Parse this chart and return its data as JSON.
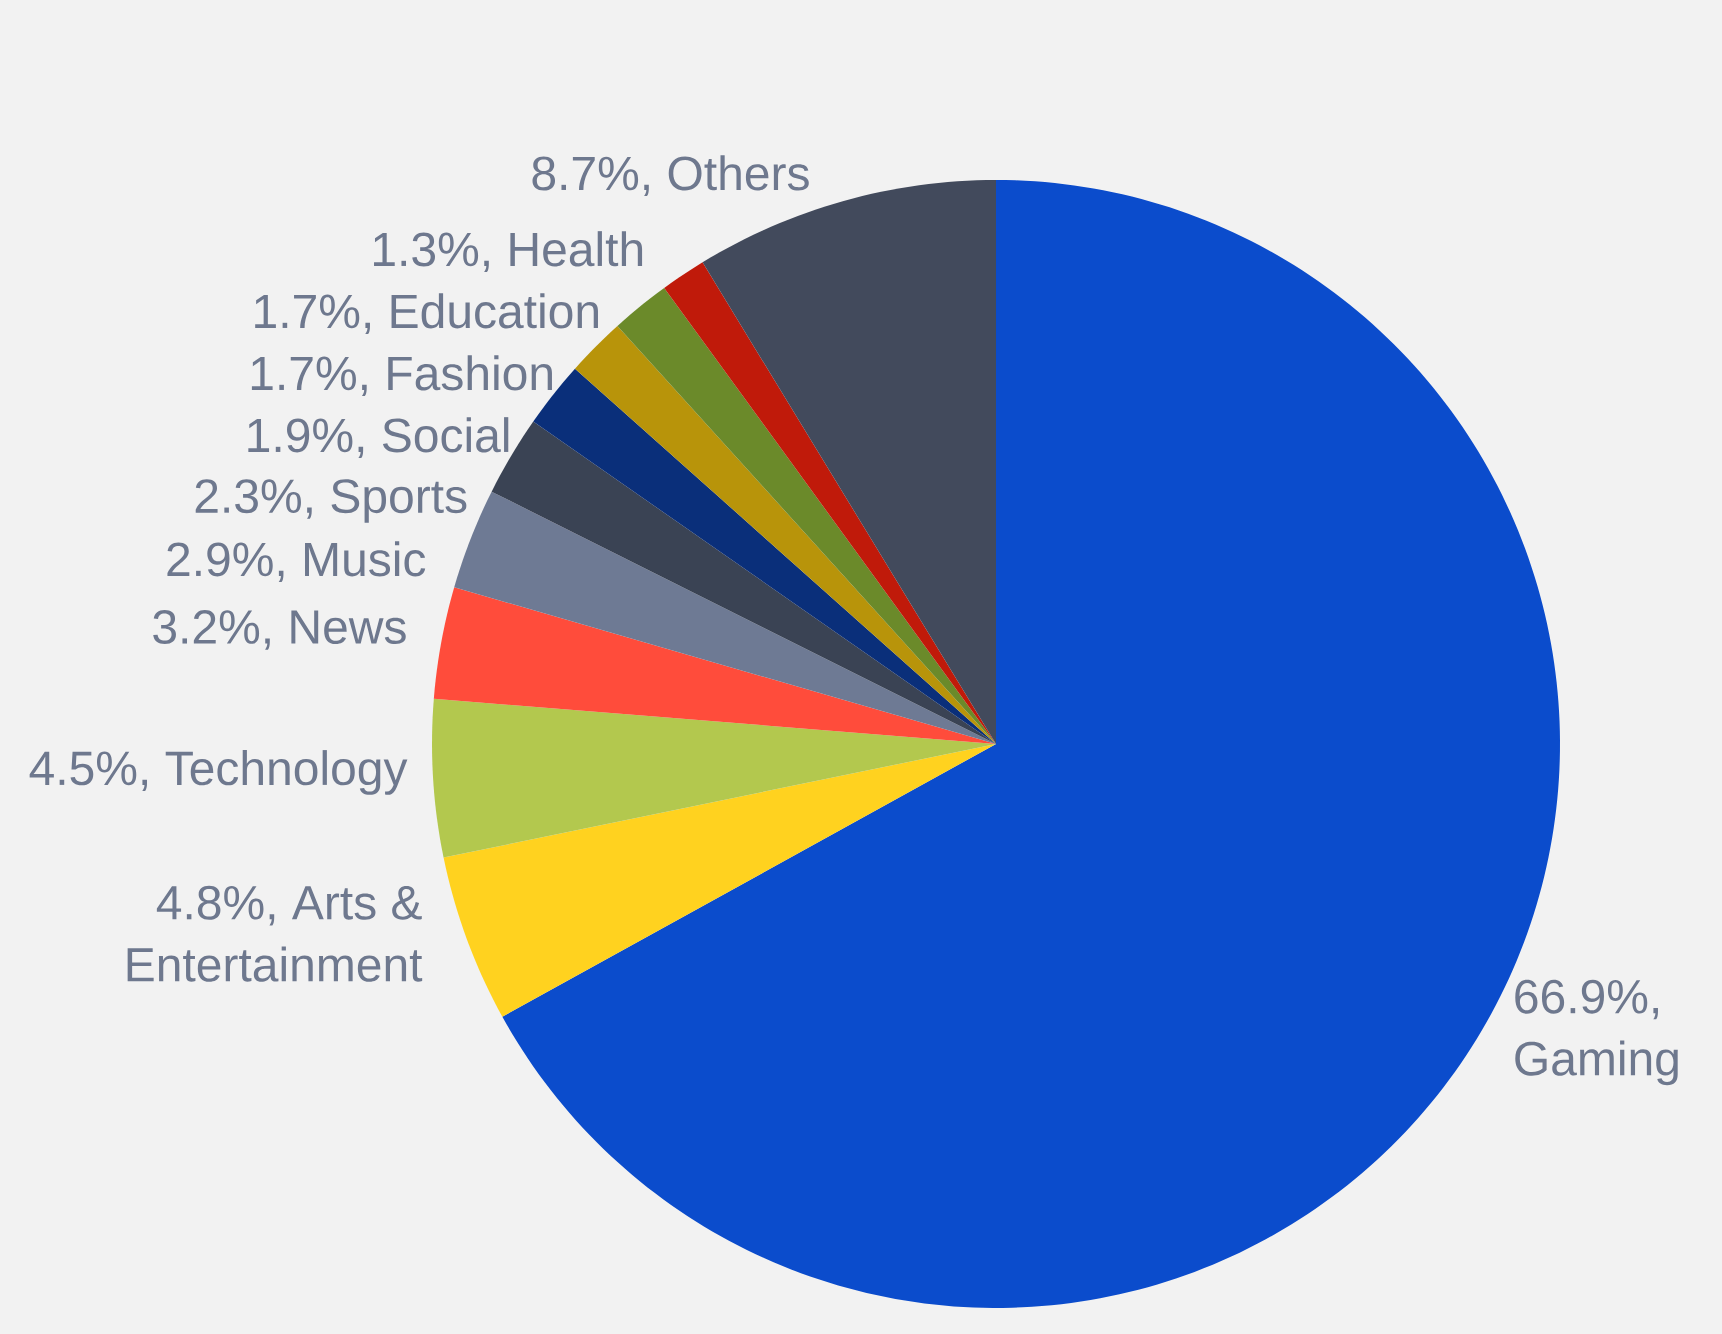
{
  "chart_data": {
    "type": "pie",
    "categories": [
      "Gaming",
      "Arts & Entertainment",
      "Technology",
      "News",
      "Music",
      "Sports",
      "Social",
      "Fashion",
      "Education",
      "Health",
      "Others"
    ],
    "values": [
      66.9,
      4.8,
      4.5,
      3.2,
      2.9,
      2.3,
      1.9,
      1.7,
      1.7,
      1.3,
      8.7
    ],
    "value_labels": [
      "66.9%,",
      "4.8%,",
      "4.5%,",
      "3.2%,",
      "2.9%,",
      "2.3%,",
      "1.9%,",
      "1.7%,",
      "1.7%,",
      "1.3%,",
      "8.7%,"
    ],
    "colors": [
      "#0b4ccc",
      "#ffd21f",
      "#b3c84e",
      "#ff4c3b",
      "#6e7a94",
      "#3a4354",
      "#0a2f7a",
      "#b8940a",
      "#6b8a2a",
      "#c01a0a",
      "#424a5c"
    ]
  }
}
